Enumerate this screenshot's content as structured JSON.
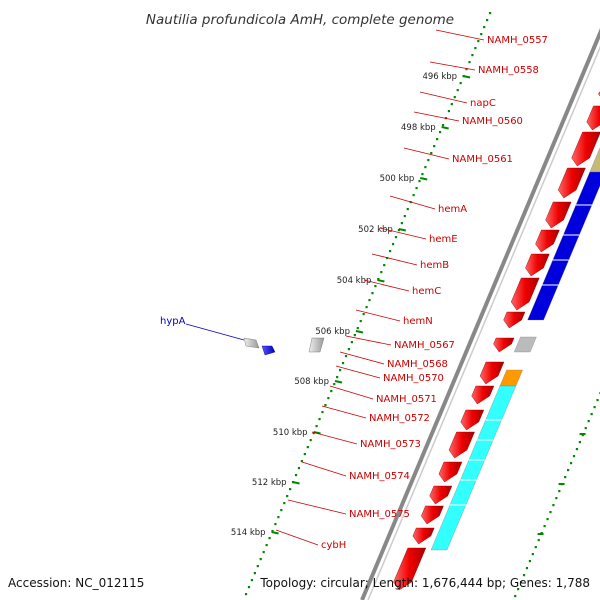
{
  "title": "Nautilia profundicola AmH, complete genome",
  "footer": {
    "accession": "Accession: NC_012115",
    "topology": "Topology: circular; Length: 1,676,444 bp; Genes: 1,788"
  },
  "colors": {
    "backbone": "#888888",
    "gene_forward": "#ee0000",
    "tick": "#008800",
    "label_red": "#cc0000",
    "label_blue": "#0000cc"
  },
  "ticks": [
    {
      "label": "496 kbp",
      "kbp": 496
    },
    {
      "label": "498 kbp",
      "kbp": 498
    },
    {
      "label": "500 kbp",
      "kbp": 500
    },
    {
      "label": "502 kbp",
      "kbp": 502
    },
    {
      "label": "504 kbp",
      "kbp": 504
    },
    {
      "label": "506 kbp",
      "kbp": 506
    },
    {
      "label": "508 kbp",
      "kbp": 508
    },
    {
      "label": "510 kbp",
      "kbp": 510
    },
    {
      "label": "512 kbp",
      "kbp": 512
    },
    {
      "label": "514 kbp",
      "kbp": 514
    }
  ],
  "labels_right": [
    {
      "name": "NAMH_0557"
    },
    {
      "name": "NAMH_0558"
    },
    {
      "name": "napC"
    },
    {
      "name": "NAMH_0560"
    },
    {
      "name": "NAMH_0561"
    },
    {
      "name": "hemA"
    },
    {
      "name": "hemE"
    },
    {
      "name": "hemB"
    },
    {
      "name": "hemC"
    },
    {
      "name": "hemN"
    },
    {
      "name": "NAMH_0567"
    },
    {
      "name": "NAMH_0568"
    },
    {
      "name": "NAMH_0570"
    },
    {
      "name": "NAMH_0571"
    },
    {
      "name": "NAMH_0572"
    },
    {
      "name": "NAMH_0573"
    },
    {
      "name": "NAMH_0574"
    },
    {
      "name": "NAMH_0575"
    },
    {
      "name": "cybH"
    }
  ],
  "labels_left": [
    {
      "name": "hypA"
    }
  ],
  "cog_blocks": [
    {
      "color": "#ffbbbb"
    },
    {
      "color": "#ff9900"
    },
    {
      "color": "#33cc33"
    },
    {
      "color": "#33ffff"
    },
    {
      "color": "#c8b878"
    },
    {
      "color": "#0000dd"
    },
    {
      "color": "#bbbbbb"
    },
    {
      "color": "#ff9900"
    },
    {
      "color": "#33ffff"
    }
  ]
}
